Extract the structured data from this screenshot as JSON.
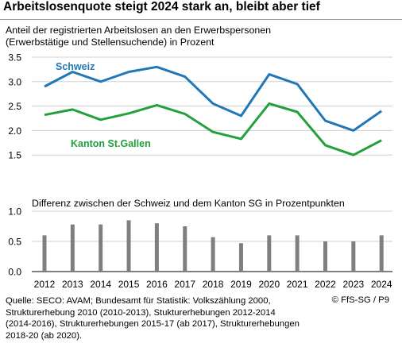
{
  "title": "Arbeitslosenquote steigt 2024 stark an, bleibt aber tief",
  "subtitle_line1": "Anteil der registrierten Arbeitslosen an den Erwerbspersonen",
  "subtitle_line2": "(Erwerbstätige und Stellensuchende) in Prozent",
  "panel2_title": "Differenz zwischen der Schweiz und dem Kanton SG in Prozentpunkten",
  "footer_lines": [
    "Quelle: SECO: AVAM; Bundesamt für Statistik: Volkszählung 2000,",
    "Strukturerhebung 2010 (2010-2013), Stukturerhebungen 2012-2014",
    "(2014-2016), Strukturerhebungen 2015-17 (ab 2017), Strukturerhebungen",
    "2018-20 (ab 2020)."
  ],
  "credit": "© FfS-SG / P9",
  "colors": {
    "schweiz": "#1f77b8",
    "stgallen": "#22a03c",
    "bars": "#7f7f7f",
    "grid": "#d0d0d0"
  },
  "chart_data": [
    {
      "type": "line",
      "x": [
        "2012",
        "2013",
        "2014",
        "2015",
        "2016",
        "2017",
        "2018",
        "2019",
        "2020",
        "2021",
        "2022",
        "2023",
        "2024"
      ],
      "ylim": [
        1.0,
        3.5
      ],
      "yticks": [
        "1.0",
        "1.5",
        "2.0",
        "2.5",
        "3.0",
        "3.5"
      ],
      "grid": true,
      "series": [
        {
          "name": "Schweiz",
          "values": [
            2.9,
            3.2,
            3.0,
            3.2,
            3.3,
            3.1,
            2.55,
            2.3,
            3.15,
            2.95,
            2.2,
            2.0,
            2.4
          ]
        },
        {
          "name": "Kanton St.Gallen",
          "values": [
            2.32,
            2.43,
            2.22,
            2.35,
            2.52,
            2.34,
            1.97,
            1.83,
            2.55,
            2.38,
            1.7,
            1.5,
            1.8
          ]
        }
      ]
    },
    {
      "type": "bar",
      "categories": [
        "2012",
        "2013",
        "2014",
        "2015",
        "2016",
        "2017",
        "2018",
        "2019",
        "2020",
        "2021",
        "2022",
        "2023",
        "2024"
      ],
      "values": [
        0.6,
        0.78,
        0.78,
        0.85,
        0.8,
        0.75,
        0.57,
        0.47,
        0.6,
        0.6,
        0.5,
        0.5,
        0.6
      ],
      "ylim": [
        0.0,
        1.0
      ],
      "yticks": [
        "0.0",
        "0.5",
        "1.0"
      ],
      "grid": true
    }
  ]
}
